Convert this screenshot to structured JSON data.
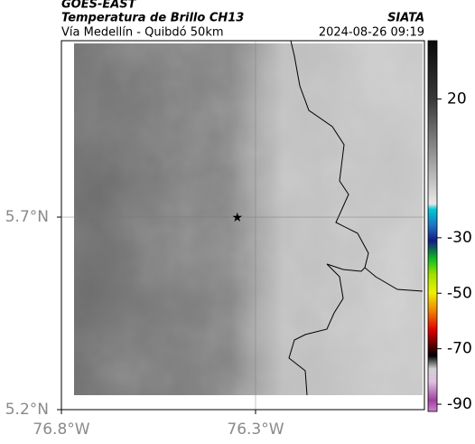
{
  "header": {
    "source": "GOES-EAST",
    "title": "Temperatura de Brillo CH13",
    "org": "SIATA",
    "subtitle": "Vía Medellín - Quibdó 50km",
    "datetime": "2024-08-26 09:19"
  },
  "chart_data": {
    "type": "map",
    "xlim": [
      -76.8,
      -75.865
    ],
    "ylim": [
      5.2,
      6.158
    ],
    "xticks": [
      {
        "value": -76.8,
        "label": "76.8°W"
      },
      {
        "value": -76.3,
        "label": "76.3°W"
      }
    ],
    "yticks": [
      {
        "value": 5.7,
        "label": "5.7°N"
      },
      {
        "value": 5.2,
        "label": "5.2°N"
      }
    ],
    "grid": true,
    "marker": {
      "lon": -76.347,
      "lat": 5.7
    },
    "colorbar": {
      "clim": [
        -92.6,
        41
      ],
      "ticks": [
        20,
        -30,
        -50,
        -70,
        -90
      ]
    }
  }
}
